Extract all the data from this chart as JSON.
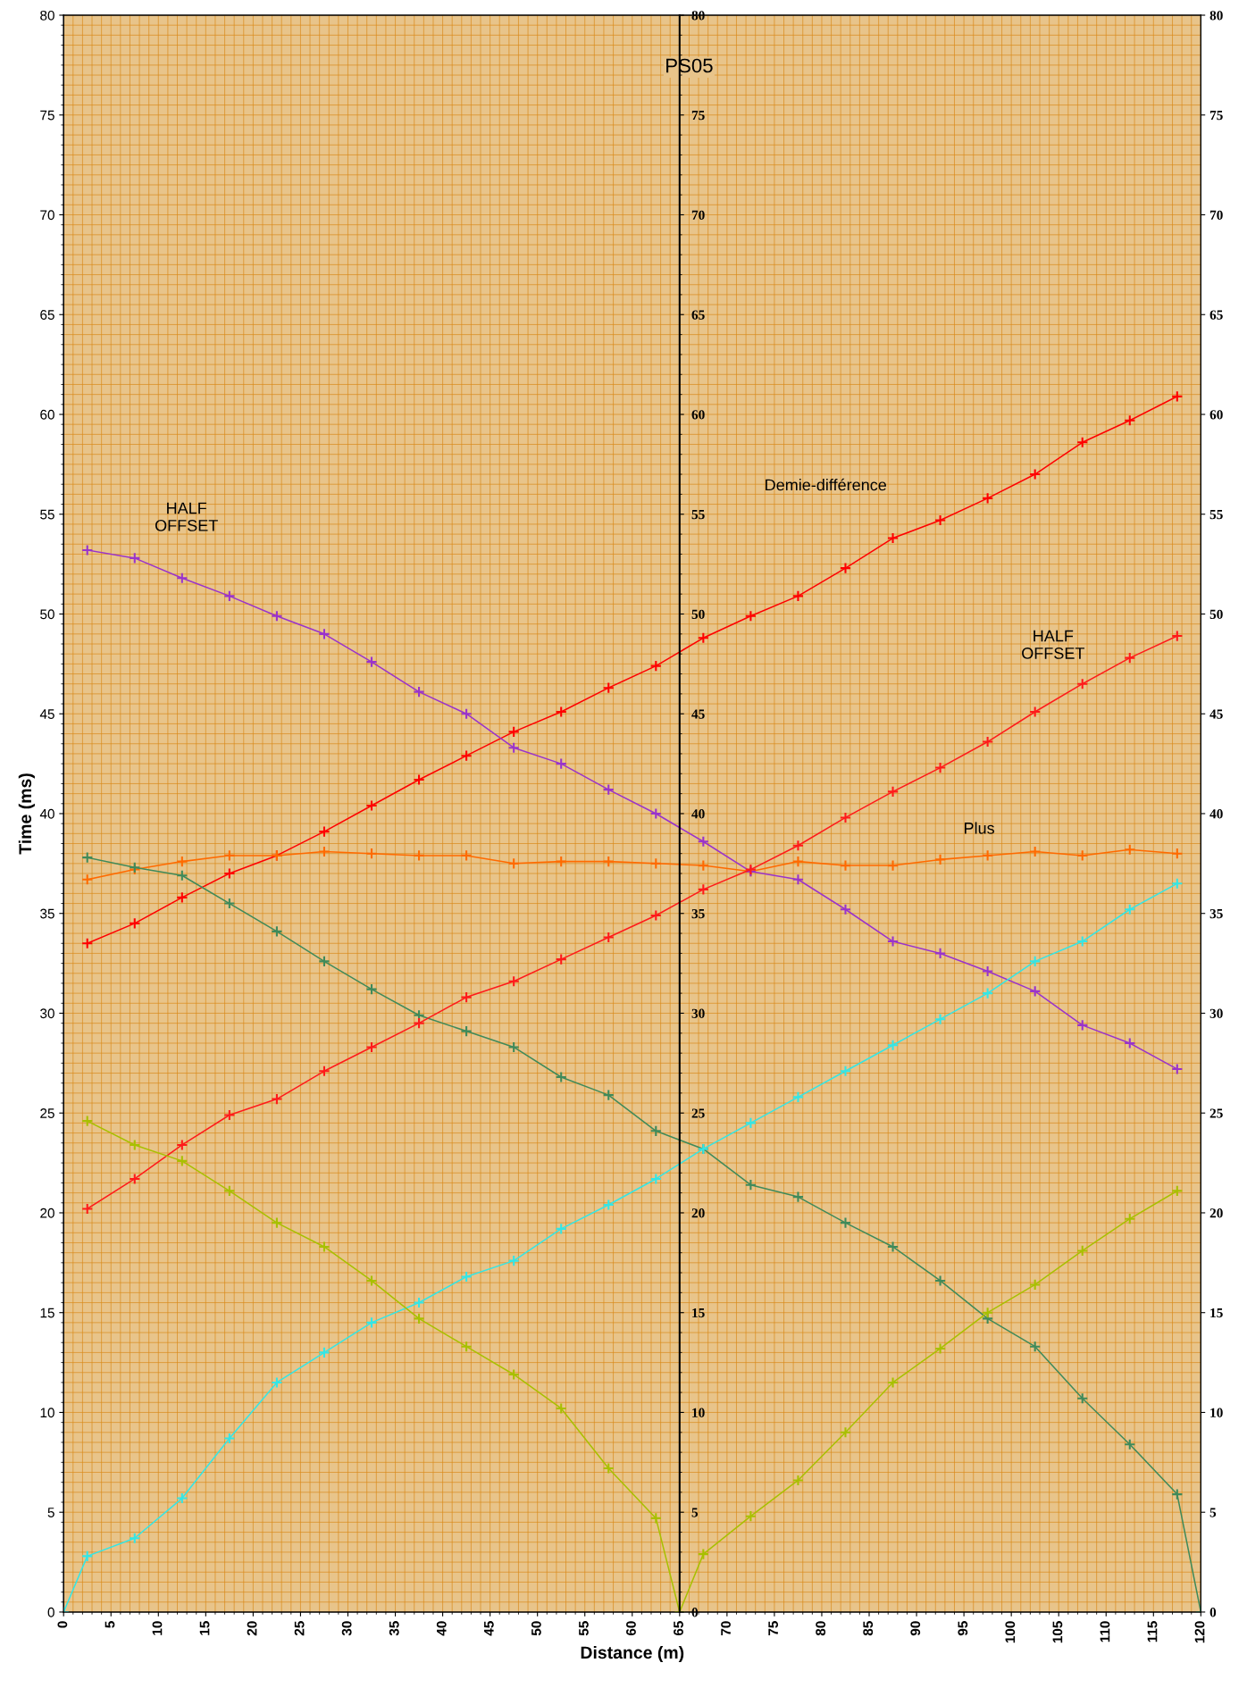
{
  "chart_data": {
    "type": "line",
    "title": "PS05",
    "xlabel": "Distance (m)",
    "ylabel": "Time (ms)",
    "xlim": [
      0,
      120
    ],
    "xticks": [
      0,
      5,
      10,
      15,
      20,
      25,
      30,
      35,
      40,
      45,
      50,
      55,
      60,
      65,
      70,
      75,
      80,
      85,
      90,
      95,
      100,
      105,
      110,
      115,
      120
    ],
    "ylim": [
      0,
      80
    ],
    "yticks": [
      0,
      5,
      10,
      15,
      20,
      25,
      30,
      35,
      40,
      45,
      50,
      55,
      60,
      65,
      70,
      75,
      80
    ],
    "y2lim": [
      0,
      80
    ],
    "y2ticks": [
      0,
      5,
      10,
      15,
      20,
      25,
      30,
      35,
      40,
      45,
      50,
      55,
      60,
      65,
      70,
      75,
      80
    ],
    "y3lim": [
      0,
      80
    ],
    "y3ticks": [
      0,
      5,
      10,
      15,
      20,
      25,
      30,
      35,
      40,
      45,
      50,
      55,
      60,
      65,
      70,
      75,
      80
    ],
    "grid": true,
    "marker": "cross",
    "line_style": "solid",
    "annotations": [
      "HALF\nOFFSET",
      "Demie-différence",
      "HALF\nOFFSET",
      "Plus"
    ],
    "series": [
      {
        "color": "#ff0000",
        "x": [
          2.5,
          7.5,
          12.5,
          17.5,
          22.5,
          27.5,
          32.5,
          37.5,
          42.5,
          47.5,
          52.5,
          57.5,
          62.5,
          67.5,
          72.5,
          77.5,
          82.5,
          87.5,
          92.5,
          97.5,
          102.5,
          107.5,
          112.5,
          117.5
        ],
        "values": [
          33.5,
          34.5,
          35.8,
          37.0,
          37.9,
          39.1,
          40.4,
          41.7,
          42.9,
          44.1,
          45.1,
          46.3,
          47.4,
          48.8,
          49.9,
          50.9,
          52.3,
          53.8,
          54.7,
          55.8,
          57.0,
          58.6,
          59.7,
          60.9
        ]
      },
      {
        "color": "#ff6a00",
        "x": [
          2.5,
          7.5,
          12.5,
          17.5,
          22.5,
          27.5,
          32.5,
          37.5,
          42.5,
          47.5,
          52.5,
          57.5,
          62.5,
          67.5,
          72.5,
          77.5,
          82.5,
          87.5,
          92.5,
          97.5,
          102.5,
          107.5,
          112.5,
          117.5
        ],
        "values": [
          36.7,
          37.2,
          37.6,
          37.9,
          37.9,
          38.1,
          38.0,
          37.9,
          37.9,
          37.5,
          37.6,
          37.6,
          37.5,
          37.4,
          37.1,
          37.6,
          37.4,
          37.4,
          37.7,
          37.9,
          38.1,
          37.9,
          38.2,
          38.0
        ]
      },
      {
        "color": "#9933cc",
        "x": [
          2.5,
          7.5,
          12.5,
          17.5,
          22.5,
          27.5,
          32.5,
          37.5,
          42.5,
          47.5,
          52.5,
          57.5,
          62.5,
          67.5,
          72.5,
          77.5,
          82.5,
          87.5,
          92.5,
          97.5,
          102.5,
          107.5,
          112.5,
          117.5
        ],
        "values": [
          53.2,
          52.8,
          51.8,
          50.9,
          49.9,
          49.0,
          47.6,
          46.1,
          45.0,
          43.3,
          42.5,
          41.2,
          40.0,
          38.6,
          37.1,
          36.7,
          35.2,
          33.6,
          33.0,
          32.1,
          31.1,
          29.4,
          28.5,
          27.2
        ]
      },
      {
        "color": "#3f8a5a",
        "x": [
          2.5,
          7.5,
          12.5,
          17.5,
          22.5,
          27.5,
          32.5,
          37.5,
          42.5,
          47.5,
          52.5,
          57.5,
          62.5,
          67.5,
          72.5,
          77.5,
          82.5,
          87.5,
          92.5,
          97.5,
          102.5,
          107.5,
          112.5,
          117.5,
          120
        ],
        "values": [
          37.8,
          37.3,
          36.9,
          35.5,
          34.1,
          32.6,
          31.2,
          29.9,
          29.1,
          28.3,
          26.8,
          25.9,
          24.1,
          23.2,
          21.4,
          20.8,
          19.5,
          18.3,
          16.6,
          14.7,
          13.3,
          10.7,
          8.4,
          5.9,
          0
        ]
      },
      {
        "color": "#ff1a1a",
        "x": [
          2.5,
          7.5,
          12.5,
          17.5,
          22.5,
          27.5,
          32.5,
          37.5,
          42.5,
          47.5,
          52.5,
          57.5,
          62.5,
          67.5,
          72.5,
          77.5,
          82.5,
          87.5,
          92.5,
          97.5,
          102.5,
          107.5,
          112.5,
          117.5
        ],
        "values": [
          20.2,
          21.7,
          23.4,
          24.9,
          25.7,
          27.1,
          28.3,
          29.5,
          30.8,
          31.6,
          32.7,
          33.8,
          34.9,
          36.2,
          37.2,
          38.4,
          39.8,
          41.1,
          42.3,
          43.6,
          45.1,
          46.5,
          47.8,
          48.9
        ]
      },
      {
        "color": "#33e6e6",
        "x": [
          0,
          2.5,
          7.5,
          12.5,
          17.5,
          22.5,
          27.5,
          32.5,
          37.5,
          42.5,
          47.5,
          52.5,
          57.5,
          62.5,
          67.5,
          72.5,
          77.5,
          82.5,
          87.5,
          92.5,
          97.5,
          102.5,
          107.5,
          112.5,
          117.5
        ],
        "values": [
          0,
          2.8,
          3.7,
          5.7,
          8.7,
          11.5,
          13.0,
          14.5,
          15.5,
          16.8,
          17.6,
          19.2,
          20.4,
          21.7,
          23.2,
          24.5,
          25.8,
          27.1,
          28.4,
          29.7,
          31.0,
          32.6,
          33.6,
          35.2,
          36.5
        ]
      },
      {
        "color": "#a8c000",
        "x": [
          2.5,
          7.5,
          12.5,
          17.5,
          22.5,
          27.5,
          32.5,
          37.5,
          42.5,
          47.5,
          52.5,
          57.5,
          62.5,
          65,
          67.5,
          72.5,
          77.5,
          82.5,
          87.5,
          92.5,
          97.5,
          102.5,
          107.5,
          112.5,
          117.5
        ],
        "values": [
          24.6,
          23.4,
          22.6,
          21.1,
          19.5,
          18.3,
          16.6,
          14.7,
          13.3,
          11.9,
          10.2,
          7.2,
          4.7,
          0,
          2.9,
          4.8,
          6.6,
          9.0,
          11.5,
          13.2,
          15.0,
          16.4,
          18.1,
          19.7,
          21.1
        ]
      }
    ]
  }
}
